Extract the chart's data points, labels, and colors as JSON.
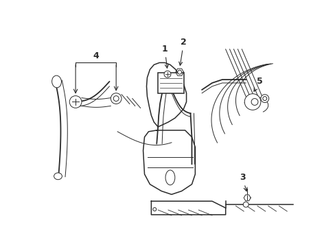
{
  "bg_color": "#ffffff",
  "line_color": "#2a2a2a",
  "label_color": "#000000",
  "fig_width": 4.89,
  "fig_height": 3.6,
  "dpi": 100,
  "lw_main": 1.1,
  "lw_thin": 0.7,
  "lw_belt": 1.3,
  "fontsize": 9
}
